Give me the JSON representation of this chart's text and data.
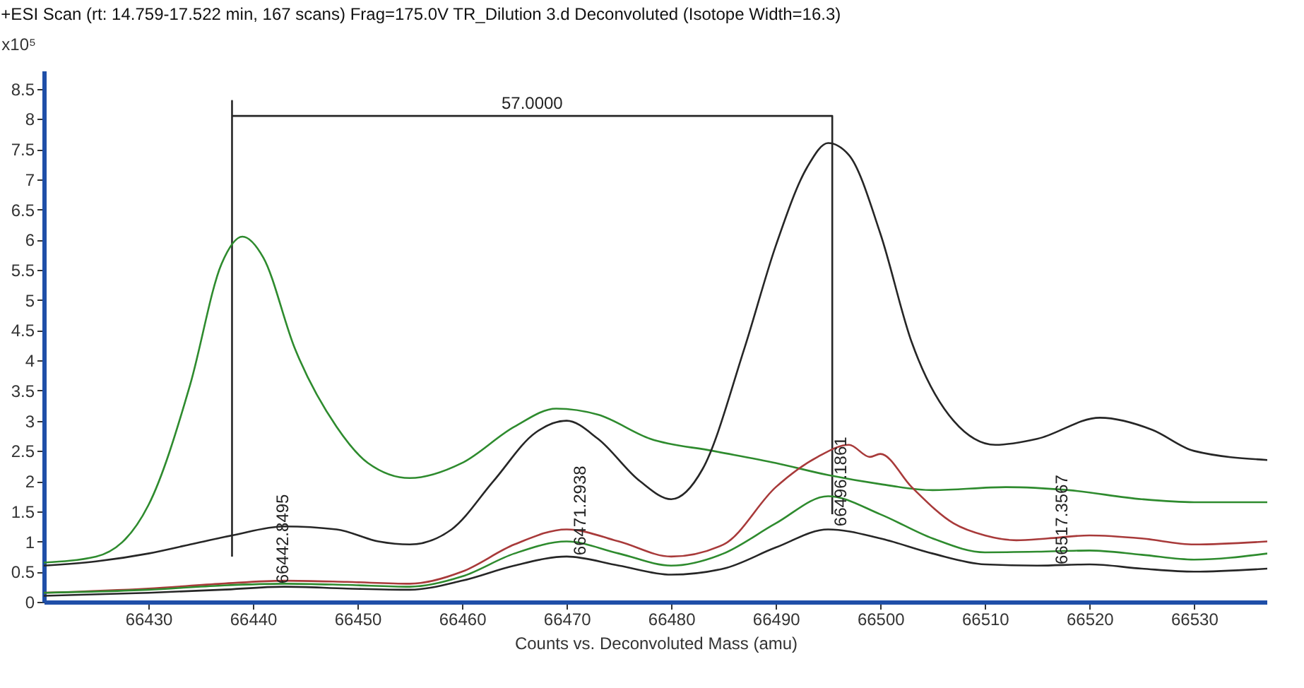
{
  "chart_data": {
    "type": "line",
    "title": "+ESI Scan (rt: 14.759-17.522 min, 167 scans) Frag=175.0V TR_Dilution 3.d  Deconvoluted (Isotope Width=16.3)",
    "xlabel": "Counts vs. Deconvoluted Mass (amu)",
    "ylabel": "x10⁵",
    "xlim": [
      66420,
      66537
    ],
    "ylim": [
      0,
      8.8
    ],
    "xticks": [
      66430,
      66440,
      66450,
      66460,
      66470,
      66480,
      66490,
      66500,
      66510,
      66520,
      66530
    ],
    "yticks": [
      0,
      0.5,
      1,
      1.5,
      2,
      2.5,
      3,
      3.5,
      4,
      4.5,
      5,
      5.5,
      6,
      6.5,
      7,
      7.5,
      8,
      8.5
    ],
    "grid": false,
    "legend": false,
    "marker": "none",
    "line_style": "solid",
    "annotations": [
      {
        "text": "57.0000",
        "x": 66466.7,
        "y": 8.05
      },
      {
        "text": "66442.8495",
        "x": 66442.85,
        "y": 0.3
      },
      {
        "text": "66471.2938",
        "x": 66471.29,
        "y": 0.77
      },
      {
        "text": "66496.1861",
        "x": 66496.19,
        "y": 1.25
      },
      {
        "text": "66517.3567",
        "x": 66517.36,
        "y": 0.62
      }
    ],
    "series": [
      {
        "type": "line",
        "color": "#262626",
        "x": [
          66438,
          66438,
          66438,
          66495.4,
          66495.4
        ],
        "values": [
          0.75,
          8.3,
          8.05,
          8.05,
          1.45
        ]
      },
      {
        "color": "#2e8b2e",
        "x": [
          66420,
          66425,
          66430,
          66434,
          66437,
          66439,
          66441,
          66444,
          66448,
          66451,
          66455,
          66460,
          66465,
          66469,
          66473,
          66478,
          66484,
          66490,
          66495,
          66500,
          66505,
          66512,
          66518,
          66525,
          66530,
          66537
        ],
        "values": [
          0.65,
          0.75,
          1.6,
          3.6,
          5.6,
          6.05,
          5.7,
          4.2,
          2.9,
          2.3,
          2.05,
          2.3,
          2.9,
          3.2,
          3.1,
          2.7,
          2.5,
          2.3,
          2.1,
          1.95,
          1.85,
          1.9,
          1.85,
          1.7,
          1.65,
          1.65
        ]
      },
      {
        "color": "#262626",
        "x": [
          66420,
          66425,
          66430,
          66434,
          66438,
          66443,
          66448,
          66452,
          66455,
          66459,
          66463,
          66467,
          66470,
          66473,
          66477,
          66480,
          66483,
          66487,
          66490,
          66493,
          66495,
          66497,
          66500,
          66503,
          66507,
          66511,
          66515,
          66521,
          66526,
          66530,
          66537
        ],
        "values": [
          0.6,
          0.67,
          0.8,
          0.95,
          1.1,
          1.25,
          1.2,
          1.0,
          0.95,
          1.2,
          2.0,
          2.8,
          3.0,
          2.7,
          2.0,
          1.7,
          2.2,
          4.2,
          5.9,
          7.2,
          7.6,
          7.4,
          6.1,
          4.3,
          3.0,
          2.6,
          2.7,
          3.05,
          2.85,
          2.5,
          2.35
        ]
      },
      {
        "color": "#a83a3a",
        "x": [
          66420,
          66430,
          66437,
          66443,
          66449,
          66455,
          66460,
          66465,
          66470,
          66475,
          66480,
          66485,
          66490,
          66494,
          66497,
          66499,
          66500,
          66503,
          66507,
          66510,
          66513,
          66516,
          66520,
          66525,
          66530,
          66537
        ],
        "values": [
          0.15,
          0.22,
          0.3,
          0.35,
          0.33,
          0.3,
          0.5,
          0.95,
          1.2,
          1.0,
          0.75,
          0.95,
          1.9,
          2.4,
          2.6,
          2.4,
          2.45,
          1.9,
          1.3,
          1.1,
          1.02,
          1.05,
          1.1,
          1.05,
          0.95,
          1.0
        ]
      },
      {
        "color": "#2e8b2e",
        "x": [
          66420,
          66430,
          66437,
          66443,
          66449,
          66455,
          66460,
          66465,
          66470,
          66475,
          66480,
          66485,
          66490,
          66495,
          66500,
          66505,
          66510,
          66515,
          66520,
          66525,
          66530,
          66537
        ],
        "values": [
          0.15,
          0.2,
          0.27,
          0.3,
          0.28,
          0.25,
          0.42,
          0.8,
          1.0,
          0.8,
          0.6,
          0.8,
          1.3,
          1.75,
          1.45,
          1.05,
          0.82,
          0.83,
          0.85,
          0.78,
          0.7,
          0.8
        ]
      },
      {
        "color": "#262626",
        "x": [
          66420,
          66430,
          66437,
          66443,
          66449,
          66455,
          66460,
          66465,
          66470,
          66475,
          66480,
          66485,
          66490,
          66495,
          66500,
          66505,
          66510,
          66515,
          66520,
          66525,
          66530,
          66537
        ],
        "values": [
          0.1,
          0.15,
          0.2,
          0.25,
          0.22,
          0.2,
          0.35,
          0.6,
          0.75,
          0.6,
          0.45,
          0.55,
          0.9,
          1.2,
          1.05,
          0.8,
          0.62,
          0.6,
          0.62,
          0.55,
          0.5,
          0.55
        ]
      }
    ]
  }
}
